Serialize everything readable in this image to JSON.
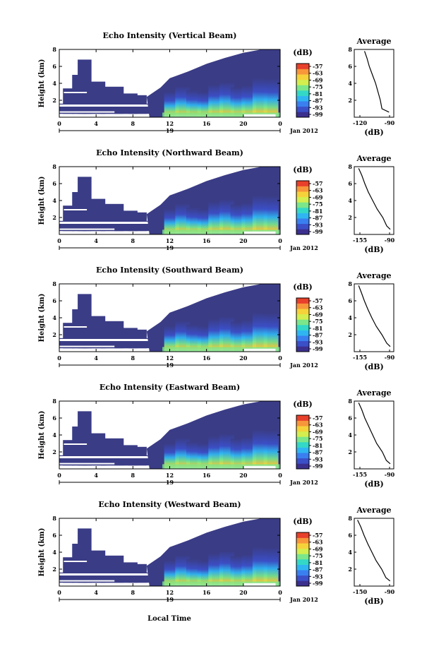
{
  "chart_data": [
    {
      "type": "heatmap",
      "title": "Echo Intensity (Vertical Beam)",
      "ylabel": "Height (km)",
      "xticks": [
        "0",
        "4",
        "8",
        "12",
        "16",
        "20",
        "0"
      ],
      "date_label": "19",
      "date_suffix": "Jan 2012",
      "ylim": [
        0,
        8
      ],
      "yticks": [
        "2",
        "4",
        "6",
        "8"
      ],
      "colorbar_unit": "(dB)",
      "colorbar_ticks": [
        "-57",
        "-63",
        "-69",
        "-75",
        "-81",
        "-87",
        "-93",
        "-99"
      ],
      "avg_title": "Average",
      "avg_xticks": [
        "-120",
        "-90"
      ],
      "avg_xlabel": "(dB)",
      "avg_yticks": [
        "2",
        "4",
        "6",
        "8"
      ],
      "avg_xlim": [
        -130,
        -80
      ],
      "avg_profile": {
        "height": [
          0.6,
          1,
          2,
          3,
          4,
          5,
          6,
          7,
          7.8
        ],
        "value": [
          -86,
          -95,
          -97,
          -100,
          -103,
          -107,
          -111,
          -114,
          -117
        ]
      }
    },
    {
      "type": "heatmap",
      "title": "Echo Intensity (Northward Beam)",
      "ylabel": "Height (km)",
      "xticks": [
        "0",
        "4",
        "8",
        "12",
        "16",
        "20",
        "0"
      ],
      "date_label": "19",
      "date_suffix": "Jan 2012",
      "ylim": [
        0,
        8
      ],
      "yticks": [
        "2",
        "4",
        "6",
        "8"
      ],
      "colorbar_unit": "(dB)",
      "colorbar_ticks": [
        "-57",
        "-63",
        "-69",
        "-75",
        "-81",
        "-87",
        "-93",
        "-99"
      ],
      "avg_title": "Average",
      "avg_xticks": [
        "-155",
        "-90"
      ],
      "avg_xlabel": "(dB)",
      "avg_yticks": [
        "2",
        "4",
        "6",
        "8"
      ],
      "avg_xlim": [
        -170,
        -80
      ],
      "avg_profile": {
        "height": [
          0.6,
          1,
          2,
          3,
          4,
          5,
          6,
          7,
          7.8
        ],
        "value": [
          -88,
          -96,
          -105,
          -118,
          -128,
          -138,
          -146,
          -153,
          -160
        ]
      }
    },
    {
      "type": "heatmap",
      "title": "Echo Intensity (Southward Beam)",
      "ylabel": "Height (km)",
      "xticks": [
        "0",
        "4",
        "8",
        "12",
        "16",
        "20",
        "0"
      ],
      "date_label": "19",
      "date_suffix": "Jan 2012",
      "ylim": [
        0,
        8
      ],
      "yticks": [
        "2",
        "4",
        "6",
        "8"
      ],
      "colorbar_unit": "(dB)",
      "colorbar_ticks": [
        "-57",
        "-63",
        "-69",
        "-75",
        "-81",
        "-87",
        "-93",
        "-99"
      ],
      "avg_title": "Average",
      "avg_xticks": [
        "-155",
        "-90"
      ],
      "avg_xlabel": "(dB)",
      "avg_yticks": [
        "2",
        "4",
        "6",
        "8"
      ],
      "avg_xlim": [
        -170,
        -80
      ],
      "avg_profile": {
        "height": [
          0.6,
          1,
          2,
          3,
          4,
          5,
          6,
          7,
          7.8
        ],
        "value": [
          -88,
          -96,
          -107,
          -120,
          -130,
          -139,
          -147,
          -154,
          -160
        ]
      }
    },
    {
      "type": "heatmap",
      "title": "Echo Intensity (Eastward Beam)",
      "ylabel": "Height (km)",
      "xticks": [
        "0",
        "4",
        "8",
        "12",
        "16",
        "20",
        "0"
      ],
      "date_label": "19",
      "date_suffix": "Jan 2012",
      "ylim": [
        0,
        8
      ],
      "yticks": [
        "2",
        "4",
        "6",
        "8"
      ],
      "colorbar_unit": "(dB)",
      "colorbar_ticks": [
        "-57",
        "-63",
        "-69",
        "-75",
        "-81",
        "-87",
        "-93",
        "-99"
      ],
      "avg_title": "Average",
      "avg_xticks": [
        "-155",
        "-90"
      ],
      "avg_xlabel": "(dB)",
      "avg_yticks": [
        "2",
        "4",
        "6",
        "8"
      ],
      "avg_xlim": [
        -170,
        -80
      ],
      "avg_profile": {
        "height": [
          0.6,
          1,
          2,
          3,
          4,
          5,
          6,
          7,
          7.8
        ],
        "value": [
          -88,
          -97,
          -106,
          -119,
          -128,
          -137,
          -146,
          -153,
          -160
        ]
      }
    },
    {
      "type": "heatmap",
      "title": "Echo Intensity (Westward Beam)",
      "ylabel": "Height (km)",
      "xticks": [
        "0",
        "4",
        "8",
        "12",
        "16",
        "20",
        "0"
      ],
      "date_label": "19",
      "date_suffix": "Jan 2012",
      "ylim": [
        0,
        8
      ],
      "yticks": [
        "2",
        "4",
        "6",
        "8"
      ],
      "colorbar_unit": "(dB)",
      "colorbar_ticks": [
        "-57",
        "-63",
        "-69",
        "-75",
        "-81",
        "-87",
        "-93",
        "-99"
      ],
      "avg_title": "Average",
      "avg_xticks": [
        "-150",
        "-90"
      ],
      "avg_xlabel": "(dB)",
      "avg_yticks": [
        "2",
        "4",
        "6",
        "8"
      ],
      "avg_xlim": [
        -165,
        -80
      ],
      "avg_profile": {
        "height": [
          0.6,
          1,
          2,
          3,
          4,
          5,
          6,
          7,
          7.8
        ],
        "value": [
          -88,
          -97,
          -106,
          -118,
          -127,
          -136,
          -144,
          -151,
          -158
        ]
      }
    }
  ],
  "xlabel": "Local Time",
  "colors": {
    "colormap": [
      "#3b2f8e",
      "#3b4fc8",
      "#3a7ff0",
      "#2fb6f2",
      "#33d8c6",
      "#7be68a",
      "#d3ee4e",
      "#f6d23a",
      "#f7963a",
      "#e8402a"
    ],
    "echo_fill": "#3a3c86"
  }
}
